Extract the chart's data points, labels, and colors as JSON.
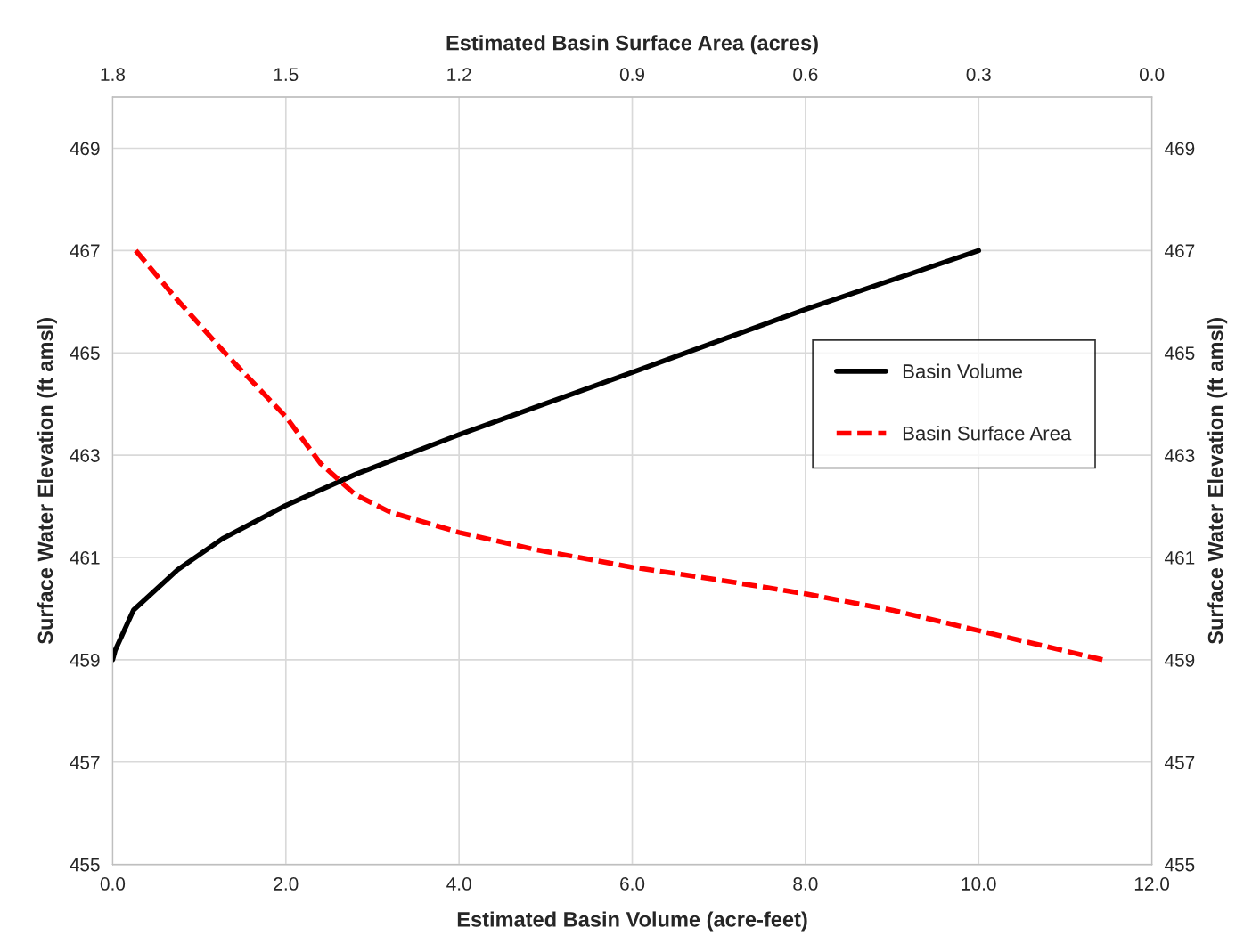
{
  "chart_data": {
    "type": "line",
    "xlabel": "Estimated Basin Volume (acre-feet)",
    "x2label": "Estimated Basin Surface Area (acres)",
    "ylabel": "Surface Water Elevation (ft amsl)",
    "y2label": "Surface Water Elevation (ft amsl)",
    "xlim": [
      0,
      12
    ],
    "xticks": [
      {
        "value": 0,
        "label": "0.0"
      },
      {
        "value": 2,
        "label": "2.0"
      },
      {
        "value": 4,
        "label": "4.0"
      },
      {
        "value": 6,
        "label": "6.0"
      },
      {
        "value": 8,
        "label": "8.0"
      },
      {
        "value": 10,
        "label": "10.0"
      },
      {
        "value": 12,
        "label": "12.0"
      }
    ],
    "x2lim": [
      1.8,
      0
    ],
    "x2ticks": [
      1.8,
      1.5,
      1.2,
      0.9,
      0.6,
      0.3,
      {
        "value": 0,
        "label": "0.0"
      }
    ],
    "ylim": [
      455,
      470
    ],
    "yticks": [
      455,
      457,
      459,
      461,
      463,
      465,
      467,
      469
    ],
    "y2lim": [
      455,
      470
    ],
    "y2ticks": [
      455,
      457,
      459,
      461,
      463,
      465,
      467,
      469
    ],
    "grid": true,
    "legend": "right",
    "marker": "none",
    "series": [
      {
        "name": "Basin Volume",
        "color": "#000000",
        "line_style": "solid",
        "x": [
          0,
          0.03,
          0.24,
          0.75,
          1.27,
          1.99,
          2.81,
          4.0,
          6.0,
          8.0,
          10.0
        ],
        "values": [
          459,
          459.19,
          459.97,
          460.76,
          461.37,
          462.01,
          462.63,
          463.4,
          464.62,
          465.85,
          467.0
        ]
      },
      {
        "name": "Basin Surface Area",
        "color": "#ff0000",
        "line_style": "dashed",
        "axis": "x2",
        "x": [
          1.76,
          1.69,
          1.6,
          1.5,
          1.44,
          1.38,
          1.32,
          1.2,
          1.07,
          0.9,
          0.76,
          0.6,
          0.45,
          0.3,
          0.085
        ],
        "values": [
          467.0,
          466.06,
          464.93,
          463.75,
          462.84,
          462.23,
          461.89,
          461.49,
          461.16,
          460.81,
          460.58,
          460.29,
          459.97,
          459.57,
          459.0
        ]
      }
    ]
  }
}
